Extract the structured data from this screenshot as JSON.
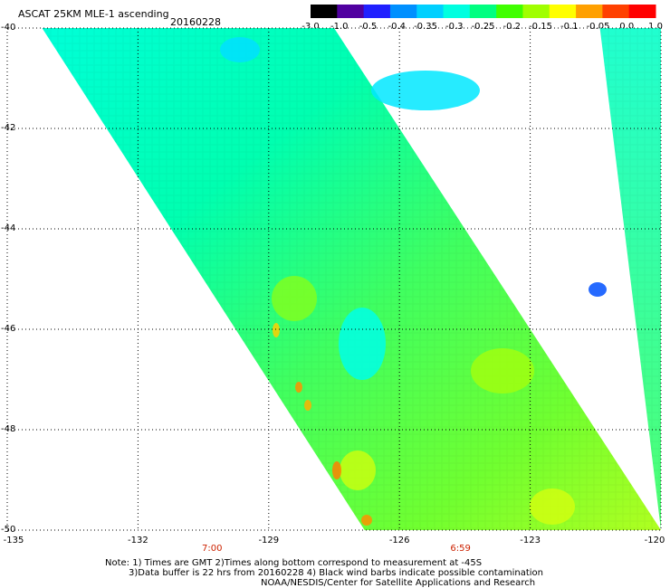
{
  "header": {
    "product": "ASCAT 25KM MLE-1 ascending",
    "date": "20160228"
  },
  "colorbar": {
    "labels": [
      "-3.0",
      "-1.0",
      "-0.5",
      "-0.4",
      "-0.35",
      "-0.3",
      "-0.25",
      "-0.2",
      "-0.15",
      "-0.1",
      "-0.05",
      "0.0",
      "1.0"
    ],
    "colors": [
      "#000000",
      "#5000a0",
      "#2020ff",
      "#0090ff",
      "#00d0ff",
      "#00ffe0",
      "#00ff80",
      "#40ff00",
      "#a0ff00",
      "#ffff00",
      "#ffa000",
      "#ff4000",
      "#ff0000"
    ]
  },
  "map": {
    "lat_labels": [
      "-40",
      "-42",
      "-44",
      "-46",
      "-48",
      "-50"
    ],
    "lon_labels": [
      "-135",
      "-132",
      "-129",
      "-126",
      "-123",
      "-120"
    ],
    "time_labels": [
      "7:00",
      "6:59"
    ],
    "lon_range": [
      -135,
      -120
    ],
    "lat_range": [
      -40,
      -50
    ],
    "swaths": [
      {
        "name": "main-swath",
        "lat_top": -40,
        "lat_bottom": -50,
        "west_lon_top": -134.2,
        "west_lon_bottom": -126.8,
        "east_lon_top": -127.5,
        "east_lon_bottom": -120.0
      },
      {
        "name": "east-swath",
        "lat_top": -40,
        "lat_bottom": -50,
        "west_lon_top": -121.4,
        "west_lon_bottom": -120.0,
        "east_lon_top": -120.0,
        "east_lon_bottom": -120.0
      }
    ]
  },
  "footer": {
    "line1": "Note: 1) Times are GMT 2)Times along bottom correspond to measurement at -45S",
    "line2": "3)Data buffer is 22 hrs from 20160228 4) Black wind barbs indicate possible contamination",
    "line3": "NOAA/NESDIS/Center for Satellite Applications and Research"
  }
}
